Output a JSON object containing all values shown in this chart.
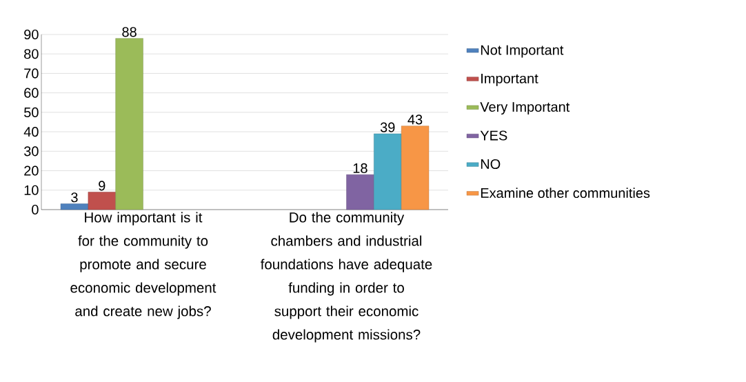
{
  "chart_data": {
    "type": "bar",
    "categories": [
      "How important is it for the community to promote and secure economic development and create new jobs?",
      "Do the community chambers and industrial foundations have adequate funding in order to support their economic development missions?"
    ],
    "series": [
      {
        "name": "Not Important",
        "color": "#4f81bd",
        "values": [
          3,
          null
        ]
      },
      {
        "name": "Important",
        "color": "#c0504d",
        "values": [
          9,
          null
        ]
      },
      {
        "name": "Very Important",
        "color": "#9bbb59",
        "values": [
          88,
          null
        ]
      },
      {
        "name": "YES",
        "color": "#8064a2",
        "values": [
          null,
          18
        ]
      },
      {
        "name": "NO",
        "color": "#4bacc6",
        "values": [
          null,
          39
        ]
      },
      {
        "name": "Examine other communities",
        "color": "#f79646",
        "values": [
          null,
          43
        ]
      }
    ],
    "ylim": [
      0,
      90
    ],
    "yticks": [
      0,
      10,
      20,
      30,
      40,
      50,
      60,
      70,
      80,
      90
    ],
    "grid": "y",
    "legend": "right",
    "data_labels": true
  }
}
